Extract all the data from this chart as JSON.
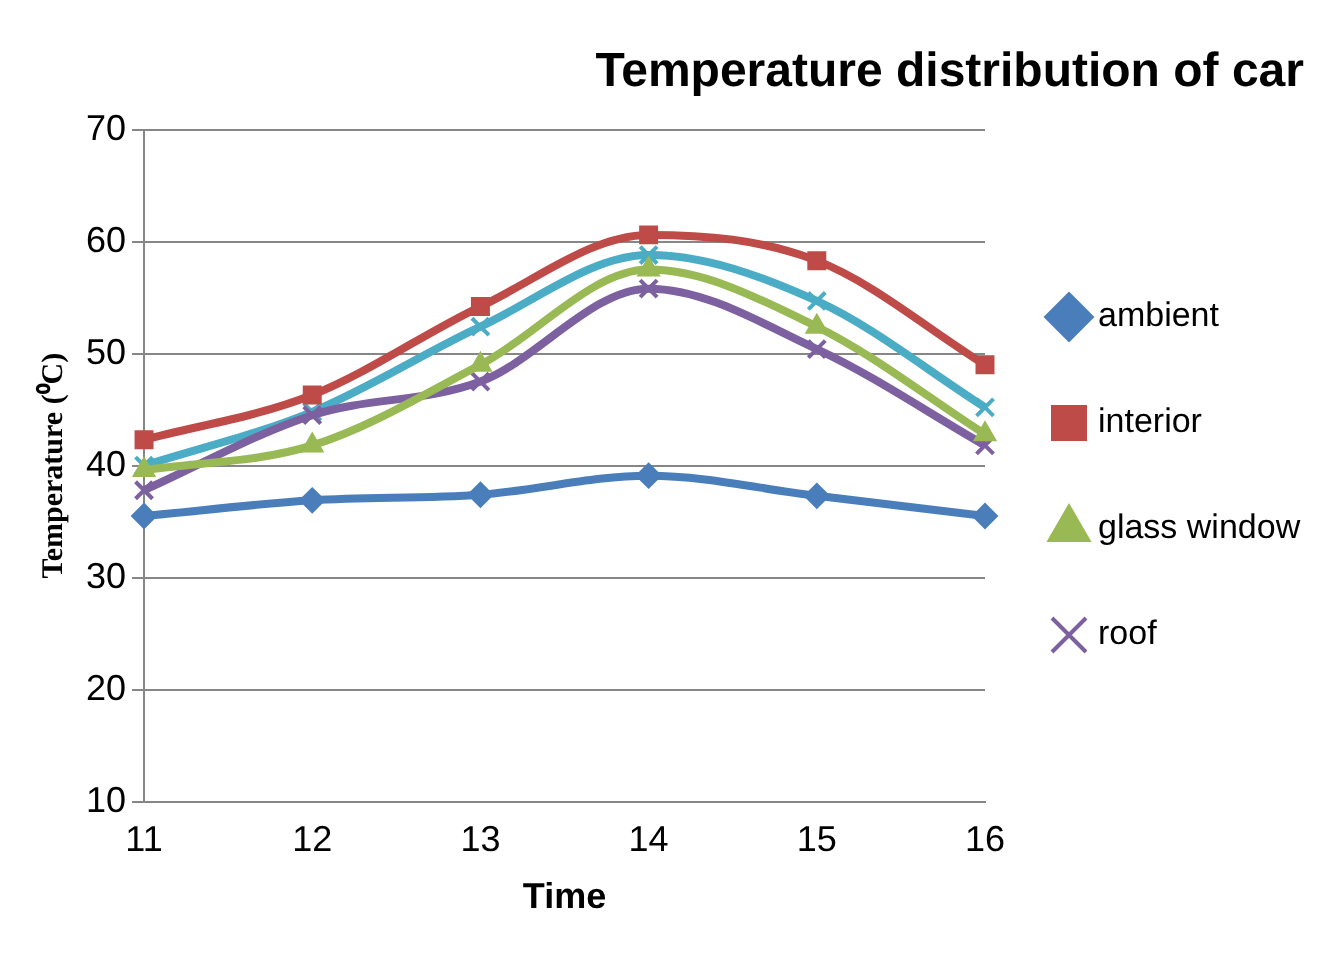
{
  "chart_data": {
    "type": "line",
    "title": "Temperature distribution of car",
    "xlabel": "Time",
    "ylabel": "Temperature (⁰C)",
    "categories": [
      "11",
      "12",
      "13",
      "14",
      "15",
      "16"
    ],
    "ylim": [
      10,
      70
    ],
    "yticks": [
      10,
      20,
      30,
      40,
      50,
      60,
      70
    ],
    "grid": "y",
    "legend": "right",
    "line_style": "solid",
    "series": [
      {
        "name": "ambient",
        "color": "#4a7ebb",
        "marker": "diamond",
        "values": [
          35.5,
          36.9,
          37.4,
          39.1,
          37.3,
          35.5
        ]
      },
      {
        "name": "interior",
        "color": "#be4b48",
        "marker": "square",
        "values": [
          42.3,
          46.3,
          54.2,
          60.6,
          58.3,
          49
        ]
      },
      {
        "name": "glass window",
        "color": "#98b954",
        "marker": "triangle",
        "values": [
          39.6,
          41.8,
          49,
          57.5,
          52.4,
          42.8
        ]
      },
      {
        "name": "roof",
        "color": "#7d60a0",
        "marker": "cross",
        "values": [
          37.8,
          44.5,
          47.5,
          55.8,
          50.4,
          41.8
        ]
      },
      {
        "color": "#4bacc6",
        "marker": "cross",
        "values": [
          40,
          44.8,
          52.4,
          58.8,
          54.7,
          45.2
        ]
      }
    ]
  }
}
